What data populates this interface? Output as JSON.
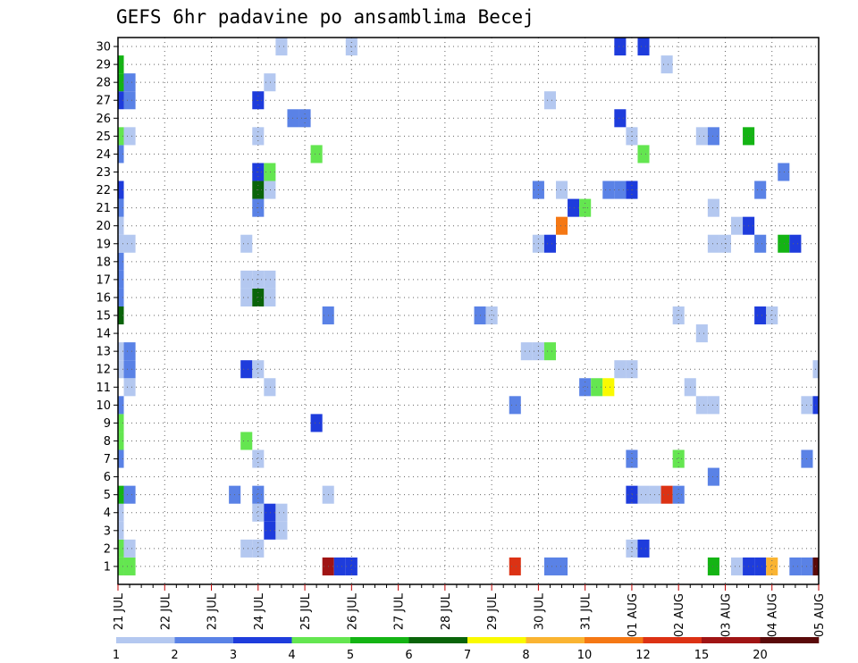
{
  "chart_data": {
    "type": "heatmap",
    "title": "GEFS 6hr padavine po ansamblima Becej",
    "xlabel": "",
    "ylabel": "",
    "x_tick_labels": [
      "21 JUL",
      "22 JUL",
      "23 JUL",
      "24 JUL",
      "25 JUL",
      "26 JUL",
      "27 JUL",
      "28 JUL",
      "29 JUL",
      "30 JUL",
      "31 JUL",
      "01 AUG",
      "02 AUG",
      "03 AUG",
      "04 AUG",
      "05 AUG"
    ],
    "y_tick_labels": [
      "1",
      "2",
      "3",
      "4",
      "5",
      "6",
      "7",
      "8",
      "9",
      "10",
      "11",
      "12",
      "13",
      "14",
      "15",
      "16",
      "17",
      "18",
      "19",
      "20",
      "21",
      "22",
      "23",
      "24",
      "25",
      "26",
      "27",
      "28",
      "29",
      "30"
    ],
    "x_range_steps": [
      0,
      60
    ],
    "steps_per_day": 4,
    "y_range": [
      0,
      30.5
    ],
    "grid": true,
    "colorbar": {
      "position": "bottom",
      "levels": [
        "1",
        "2",
        "3",
        "4",
        "5",
        "6",
        "7",
        "8",
        "10",
        "12",
        "15",
        "20"
      ],
      "colors": [
        "#b4c8f0",
        "#5a82e6",
        "#1e3cdc",
        "#64e650",
        "#14b414",
        "#0a640a",
        "#fafa00",
        "#fab432",
        "#f57814",
        "#dc3214",
        "#a01414",
        "#5a0a0a"
      ]
    },
    "cells": [
      [
        1,
        0,
        3
      ],
      [
        1,
        1,
        3
      ],
      [
        1,
        18,
        10
      ],
      [
        1,
        19,
        2
      ],
      [
        1,
        20,
        2
      ],
      [
        1,
        34,
        9
      ],
      [
        1,
        37,
        1
      ],
      [
        1,
        38,
        1
      ],
      [
        1,
        51,
        4
      ],
      [
        1,
        53,
        0
      ],
      [
        1,
        54,
        2
      ],
      [
        1,
        55,
        2
      ],
      [
        1,
        56,
        7
      ],
      [
        1,
        58,
        1
      ],
      [
        1,
        59,
        1
      ],
      [
        1,
        60,
        11
      ],
      [
        2,
        0,
        3
      ],
      [
        2,
        1,
        0
      ],
      [
        2,
        11,
        0
      ],
      [
        2,
        12,
        0
      ],
      [
        2,
        44,
        0
      ],
      [
        2,
        45,
        2
      ],
      [
        3,
        0,
        0
      ],
      [
        3,
        13,
        2
      ],
      [
        3,
        14,
        0
      ],
      [
        4,
        0,
        0
      ],
      [
        4,
        12,
        0
      ],
      [
        4,
        13,
        2
      ],
      [
        4,
        14,
        0
      ],
      [
        5,
        0,
        4
      ],
      [
        5,
        1,
        1
      ],
      [
        5,
        10,
        1
      ],
      [
        5,
        12,
        1
      ],
      [
        5,
        18,
        0
      ],
      [
        5,
        44,
        2
      ],
      [
        5,
        45,
        0
      ],
      [
        5,
        46,
        0
      ],
      [
        5,
        47,
        9
      ],
      [
        5,
        48,
        1
      ],
      [
        6,
        51,
        1
      ],
      [
        7,
        0,
        1
      ],
      [
        7,
        12,
        0
      ],
      [
        7,
        44,
        1
      ],
      [
        7,
        48,
        3
      ],
      [
        7,
        59,
        1
      ],
      [
        8,
        0,
        3
      ],
      [
        8,
        11,
        3
      ],
      [
        9,
        0,
        3
      ],
      [
        9,
        17,
        2
      ],
      [
        10,
        0,
        1
      ],
      [
        10,
        34,
        1
      ],
      [
        10,
        50,
        0
      ],
      [
        10,
        51,
        0
      ],
      [
        10,
        59,
        0
      ],
      [
        10,
        60,
        2
      ],
      [
        11,
        1,
        0
      ],
      [
        11,
        13,
        0
      ],
      [
        11,
        40,
        1
      ],
      [
        11,
        41,
        3
      ],
      [
        11,
        42,
        6
      ],
      [
        11,
        49,
        0
      ],
      [
        12,
        0,
        0
      ],
      [
        12,
        1,
        1
      ],
      [
        12,
        11,
        2
      ],
      [
        12,
        12,
        0
      ],
      [
        12,
        43,
        0
      ],
      [
        12,
        44,
        0
      ],
      [
        12,
        60,
        0
      ],
      [
        13,
        0,
        0
      ],
      [
        13,
        1,
        1
      ],
      [
        13,
        35,
        0
      ],
      [
        13,
        36,
        0
      ],
      [
        13,
        37,
        3
      ],
      [
        14,
        50,
        0
      ],
      [
        15,
        0,
        5
      ],
      [
        15,
        18,
        1
      ],
      [
        15,
        31,
        1
      ],
      [
        15,
        32,
        0
      ],
      [
        15,
        48,
        0
      ],
      [
        15,
        55,
        2
      ],
      [
        15,
        56,
        0
      ],
      [
        16,
        0,
        1
      ],
      [
        16,
        11,
        0
      ],
      [
        16,
        12,
        5
      ],
      [
        16,
        13,
        0
      ],
      [
        17,
        0,
        1
      ],
      [
        17,
        11,
        0
      ],
      [
        17,
        12,
        0
      ],
      [
        17,
        13,
        0
      ],
      [
        18,
        0,
        1
      ],
      [
        19,
        0,
        0
      ],
      [
        19,
        1,
        0
      ],
      [
        19,
        11,
        0
      ],
      [
        19,
        36,
        0
      ],
      [
        19,
        37,
        2
      ],
      [
        19,
        51,
        0
      ],
      [
        19,
        52,
        0
      ],
      [
        19,
        55,
        1
      ],
      [
        19,
        57,
        4
      ],
      [
        19,
        58,
        2
      ],
      [
        20,
        0,
        0
      ],
      [
        20,
        38,
        8
      ],
      [
        20,
        53,
        0
      ],
      [
        20,
        54,
        2
      ],
      [
        21,
        0,
        1
      ],
      [
        21,
        12,
        1
      ],
      [
        21,
        39,
        2
      ],
      [
        21,
        40,
        3
      ],
      [
        21,
        51,
        0
      ],
      [
        22,
        0,
        2
      ],
      [
        22,
        12,
        5
      ],
      [
        22,
        13,
        0
      ],
      [
        22,
        36,
        1
      ],
      [
        22,
        38,
        0
      ],
      [
        22,
        42,
        1
      ],
      [
        22,
        43,
        1
      ],
      [
        22,
        44,
        2
      ],
      [
        22,
        55,
        1
      ],
      [
        23,
        12,
        2
      ],
      [
        23,
        13,
        3
      ],
      [
        23,
        57,
        1
      ],
      [
        24,
        0,
        1
      ],
      [
        24,
        17,
        3
      ],
      [
        24,
        45,
        3
      ],
      [
        25,
        0,
        3
      ],
      [
        25,
        1,
        0
      ],
      [
        25,
        12,
        0
      ],
      [
        25,
        44,
        0
      ],
      [
        25,
        50,
        0
      ],
      [
        25,
        51,
        1
      ],
      [
        25,
        54,
        4
      ],
      [
        26,
        15,
        1
      ],
      [
        26,
        16,
        1
      ],
      [
        26,
        43,
        2
      ],
      [
        27,
        0,
        2
      ],
      [
        27,
        1,
        1
      ],
      [
        27,
        12,
        2
      ],
      [
        27,
        37,
        0
      ],
      [
        28,
        0,
        4
      ],
      [
        28,
        1,
        1
      ],
      [
        28,
        13,
        0
      ],
      [
        29,
        0,
        4
      ],
      [
        29,
        47,
        0
      ],
      [
        30,
        14,
        0
      ],
      [
        30,
        20,
        0
      ],
      [
        30,
        43,
        2
      ],
      [
        30,
        45,
        2
      ]
    ]
  }
}
